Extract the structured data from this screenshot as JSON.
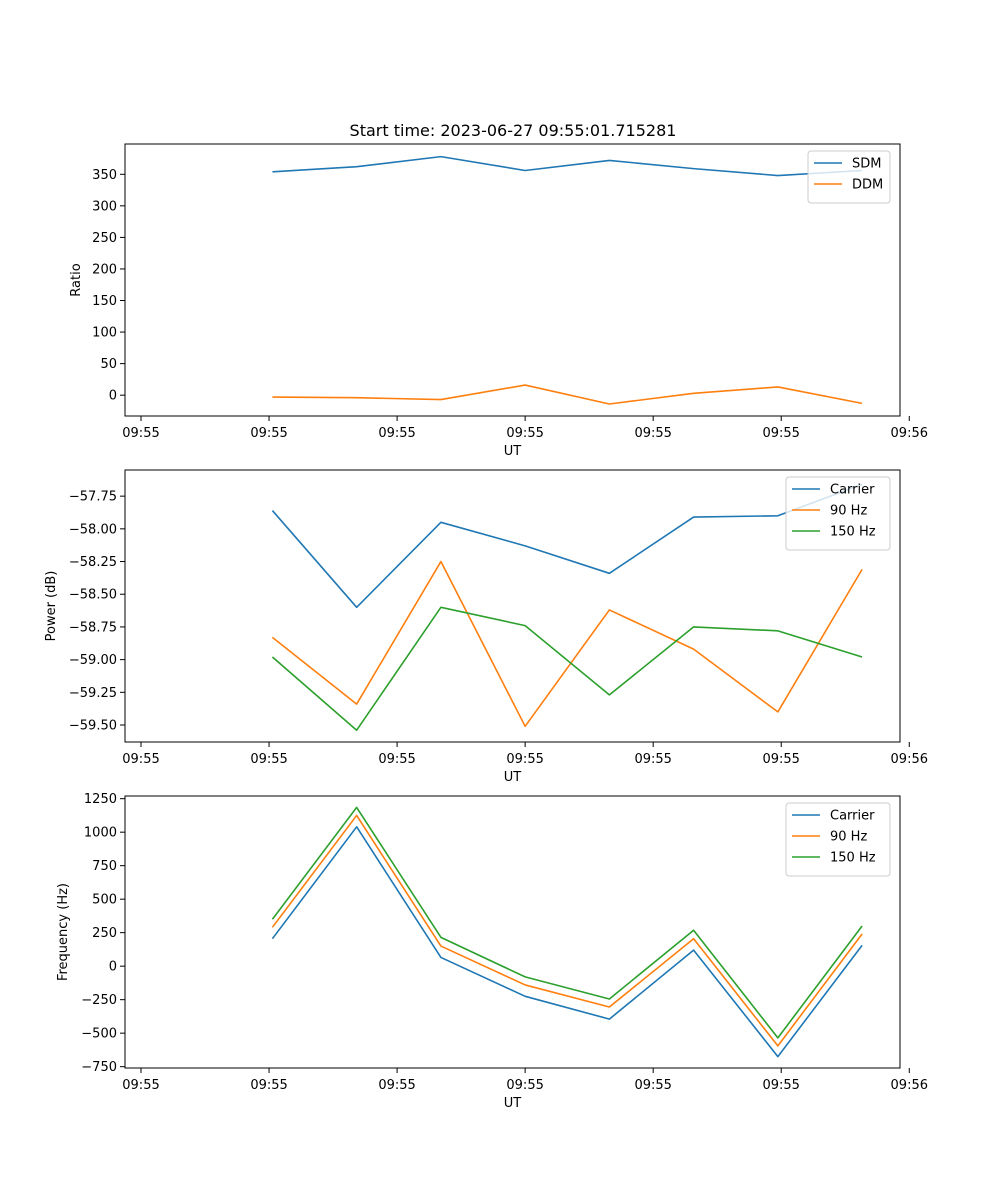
{
  "figure": {
    "title": "Start time: 2023-06-27 09:55:01.715281"
  },
  "chart_data": [
    {
      "type": "line",
      "title": "Start time: 2023-06-27 09:55:01.715281",
      "xlabel": "UT",
      "ylabel": "Ratio",
      "x": [
        1,
        2,
        3,
        4,
        5,
        6,
        7,
        8
      ],
      "xlim": [
        -0.75,
        8.45
      ],
      "x_ticks": [
        {
          "value": -0.56,
          "label": "09:55"
        },
        {
          "value": 0.96,
          "label": "09:55"
        },
        {
          "value": 2.48,
          "label": "09:55"
        },
        {
          "value": 4.0,
          "label": "09:55"
        },
        {
          "value": 5.52,
          "label": "09:55"
        },
        {
          "value": 7.04,
          "label": "09:55"
        },
        {
          "value": 8.56,
          "label": "09:56"
        }
      ],
      "ylim": [
        -33,
        398
      ],
      "y_ticks": [
        0,
        50,
        100,
        150,
        200,
        250,
        300,
        350
      ],
      "y_tick_labels": [
        "0",
        "50",
        "100",
        "150",
        "200",
        "250",
        "300",
        "350"
      ],
      "legend": "top-right",
      "grid": false,
      "series": [
        {
          "name": "SDM",
          "color": "#1f77b4",
          "values": [
            354,
            362,
            378,
            356,
            372,
            359,
            348,
            356
          ]
        },
        {
          "name": "DDM",
          "color": "#ff7f0e",
          "values": [
            -3,
            -4,
            -7,
            16,
            -14,
            3,
            13,
            -13
          ]
        }
      ]
    },
    {
      "type": "line",
      "title": "",
      "xlabel": "UT",
      "ylabel": "Power (dB)",
      "x": [
        1,
        2,
        3,
        4,
        5,
        6,
        7,
        8
      ],
      "xlim": [
        -0.75,
        8.45
      ],
      "x_ticks": [
        {
          "value": -0.56,
          "label": "09:55"
        },
        {
          "value": 0.96,
          "label": "09:55"
        },
        {
          "value": 2.48,
          "label": "09:55"
        },
        {
          "value": 4.0,
          "label": "09:55"
        },
        {
          "value": 5.52,
          "label": "09:55"
        },
        {
          "value": 7.04,
          "label": "09:55"
        },
        {
          "value": 8.56,
          "label": "09:56"
        }
      ],
      "ylim": [
        -59.63,
        -57.55
      ],
      "y_ticks": [
        -59.5,
        -59.25,
        -59.0,
        -58.75,
        -58.5,
        -58.25,
        -58.0,
        -57.75
      ],
      "y_tick_labels": [
        "−59.50",
        "−59.25",
        "−59.00",
        "−58.75",
        "−58.50",
        "−58.25",
        "−58.00",
        "−57.75"
      ],
      "legend": "top-right",
      "grid": false,
      "series": [
        {
          "name": "Carrier",
          "color": "#1f77b4",
          "values": [
            -57.86,
            -58.6,
            -57.95,
            -58.13,
            -58.34,
            -57.91,
            -57.9,
            -57.66
          ]
        },
        {
          "name": "90 Hz",
          "color": "#ff7f0e",
          "values": [
            -58.83,
            -59.34,
            -58.25,
            -59.51,
            -58.62,
            -58.92,
            -59.4,
            -58.31
          ]
        },
        {
          "name": "150 Hz",
          "color": "#2ca02c",
          "values": [
            -58.98,
            -59.54,
            -58.6,
            -58.74,
            -59.27,
            -58.75,
            -58.78,
            -58.98
          ]
        }
      ]
    },
    {
      "type": "line",
      "title": "",
      "xlabel": "UT",
      "ylabel": "Frequency (Hz)",
      "x": [
        1,
        2,
        3,
        4,
        5,
        6,
        7,
        8
      ],
      "xlim": [
        -0.75,
        8.45
      ],
      "x_ticks": [
        {
          "value": -0.56,
          "label": "09:55"
        },
        {
          "value": 0.96,
          "label": "09:55"
        },
        {
          "value": 2.48,
          "label": "09:55"
        },
        {
          "value": 4.0,
          "label": "09:55"
        },
        {
          "value": 5.52,
          "label": "09:55"
        },
        {
          "value": 7.04,
          "label": "09:55"
        },
        {
          "value": 8.56,
          "label": "09:56"
        }
      ],
      "ylim": [
        -760,
        1270
      ],
      "y_ticks": [
        -750,
        -500,
        -250,
        0,
        250,
        500,
        750,
        1000,
        1250
      ],
      "y_tick_labels": [
        "−750",
        "−500",
        "−250",
        "0",
        "250",
        "500",
        "750",
        "1000",
        "1250"
      ],
      "legend": "top-right",
      "grid": false,
      "series": [
        {
          "name": "Carrier",
          "color": "#1f77b4",
          "values": [
            205,
            1040,
            65,
            -225,
            -395,
            120,
            -675,
            155
          ]
        },
        {
          "name": "90 Hz",
          "color": "#ff7f0e",
          "values": [
            290,
            1125,
            150,
            -140,
            -305,
            205,
            -595,
            240
          ]
        },
        {
          "name": "150 Hz",
          "color": "#2ca02c",
          "values": [
            350,
            1185,
            215,
            -80,
            -245,
            268,
            -535,
            300
          ]
        }
      ]
    }
  ]
}
